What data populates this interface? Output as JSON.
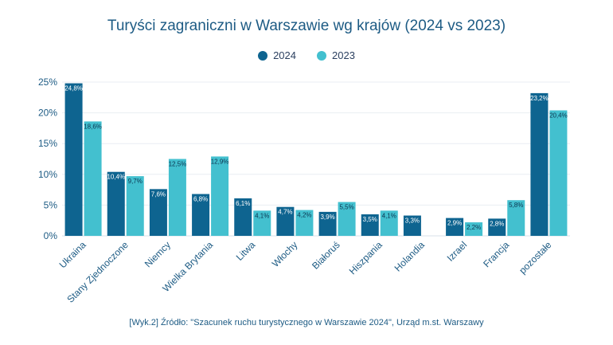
{
  "colors": {
    "series_2024": "#0e6490",
    "series_2023": "#43c0cf",
    "grid": "#e9eef3",
    "text": "#1d5b84"
  },
  "chart_data": {
    "type": "bar",
    "title": "Turyści zagraniczni w Warszawie wg krajów (2024 vs 2023)",
    "categories": [
      "Ukraina",
      "Stany Zjednoczone",
      "Niemcy",
      "Wielka Brytania",
      "Litwa",
      "Włochy",
      "Białoruś",
      "Hiszpania",
      "Holandia",
      "Izrael",
      "Francja",
      "pozostałe"
    ],
    "series": [
      {
        "name": "2024",
        "values": [
          24.8,
          10.4,
          7.6,
          6.8,
          6.1,
          4.7,
          3.9,
          3.5,
          3.3,
          2.9,
          2.8,
          23.2
        ],
        "labels": [
          "24,8%",
          "10,4%",
          "7,6%",
          "6,8%",
          "6,1%",
          "4,7%",
          "3,9%",
          "3,5%",
          "3,3%",
          "2,9%",
          "2,8%",
          "23,2%"
        ]
      },
      {
        "name": "2023",
        "values": [
          18.6,
          9.7,
          12.5,
          12.9,
          4.1,
          4.2,
          5.5,
          4.1,
          null,
          2.2,
          5.8,
          20.4
        ],
        "labels": [
          "18,6%",
          "9,7%",
          "12,5%",
          "12,9%",
          "4,1%",
          "4,2%",
          "5,5%",
          "4,1%",
          "",
          "2,2%",
          "5,8%",
          "20,4%"
        ]
      }
    ],
    "ylim": [
      0,
      25
    ],
    "yticks": [
      0,
      5,
      10,
      15,
      20,
      25
    ],
    "ytick_labels": [
      "0%",
      "5%",
      "10%",
      "15%",
      "20%",
      "25%"
    ],
    "xlabel": "",
    "ylabel": "",
    "grid": true,
    "legend_position": "top-center"
  },
  "footer": {
    "source": "[Wyk.2] Źródło: \"Szacunek ruchu turystycznego w Warszawie 2024\", Urząd m.st. Warszawy"
  }
}
